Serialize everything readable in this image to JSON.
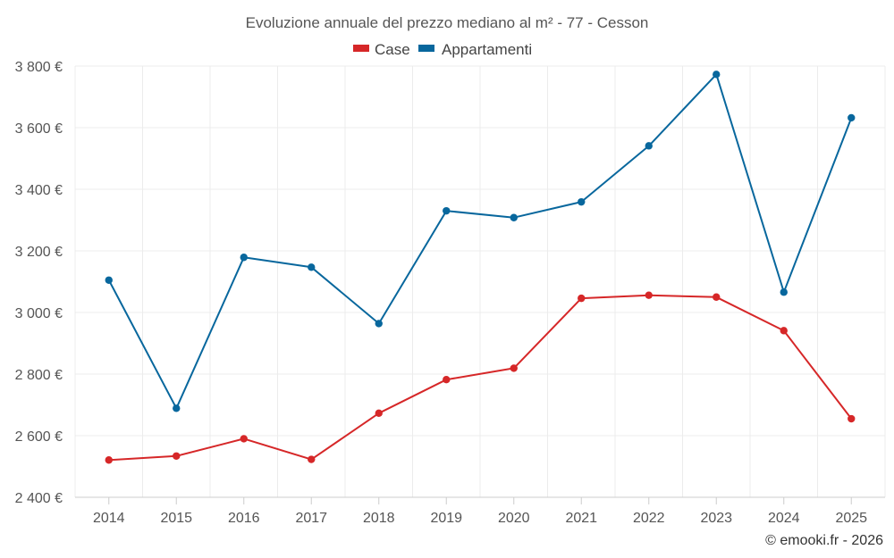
{
  "chart_data": {
    "type": "line",
    "title": "Evoluzione annuale del prezzo mediano al m² - 77 - Cesson",
    "categories": [
      "2014",
      "2015",
      "2016",
      "2017",
      "2018",
      "2019",
      "2020",
      "2021",
      "2022",
      "2023",
      "2024",
      "2025"
    ],
    "series": [
      {
        "name": "Case",
        "color": "#d62728",
        "values": [
          2521,
          2534,
          2590,
          2523,
          2673,
          2782,
          2819,
          3046,
          3056,
          3050,
          2941,
          2655
        ]
      },
      {
        "name": "Appartamenti",
        "color": "#08679d",
        "values": [
          3105,
          2689,
          3179,
          3147,
          2964,
          3330,
          3308,
          3359,
          3541,
          3773,
          3066,
          3632
        ]
      }
    ],
    "ylim": [
      2400,
      3800
    ],
    "yticks": [
      2400,
      2600,
      2800,
      3000,
      3200,
      3400,
      3600,
      3800
    ],
    "ytick_labels": [
      "2 400 €",
      "2 600 €",
      "2 800 €",
      "3 000 €",
      "3 200 €",
      "3 400 €",
      "3 600 €",
      "3 800 €"
    ],
    "xlabel": "",
    "ylabel": "",
    "grid": true,
    "legend_position": "top-center"
  },
  "credit": "© emooki.fr - 2026"
}
